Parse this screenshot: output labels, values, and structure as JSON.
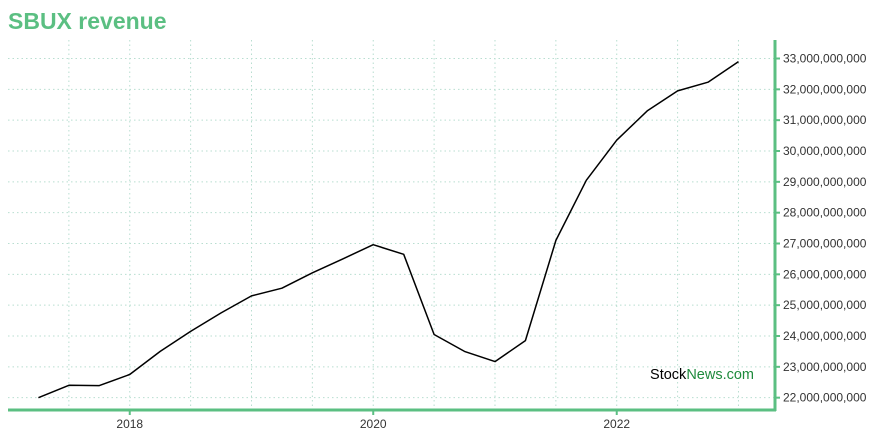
{
  "title": "SBUX revenue",
  "watermark": {
    "part1": "Stock",
    "part2": "News.com"
  },
  "colors": {
    "accent": "#5bbf82",
    "line": "#000000",
    "grid": "#b8ded0",
    "watermark_dark": "#000000",
    "watermark_green": "#1e8a3c"
  },
  "chart_data": {
    "type": "line",
    "title": "SBUX revenue",
    "xlabel": "",
    "ylabel": "",
    "xlim": [
      2017.0,
      2023.3
    ],
    "ylim": [
      21600000000,
      33600000000
    ],
    "x_ticks": [
      2018,
      2020,
      2022
    ],
    "y_ticks": [
      22000000000,
      23000000000,
      24000000000,
      25000000000,
      26000000000,
      27000000000,
      28000000000,
      29000000000,
      30000000000,
      31000000000,
      32000000000,
      33000000000
    ],
    "y_tick_labels": [
      "22,000,000,000",
      "23,000,000,000",
      "24,000,000,000",
      "25,000,000,000",
      "26,000,000,000",
      "27,000,000,000",
      "28,000,000,000",
      "29,000,000,000",
      "30,000,000,000",
      "31,000,000,000",
      "32,000,000,000",
      "33,000,000,000"
    ],
    "grid": true,
    "y_axis_side": "right",
    "series": [
      {
        "x": [
          2017.25,
          2017.5,
          2017.75,
          2018.0,
          2018.25,
          2018.5,
          2018.75,
          2019.0,
          2019.25,
          2019.5,
          2019.75,
          2020.0,
          2020.25,
          2020.5,
          2020.75,
          2021.0,
          2021.25,
          2021.5,
          2021.75,
          2022.0,
          2022.25,
          2022.5,
          2022.75,
          2023.0
        ],
        "values": [
          22000000000,
          22400000000,
          22390000000,
          22750000000,
          23500000000,
          24150000000,
          24750000000,
          25300000000,
          25550000000,
          26050000000,
          26500000000,
          26960000000,
          26650000000,
          24050000000,
          23500000000,
          23170000000,
          23850000000,
          27100000000,
          29050000000,
          30350000000,
          31300000000,
          31950000000,
          32230000000,
          32900000000
        ]
      }
    ]
  }
}
